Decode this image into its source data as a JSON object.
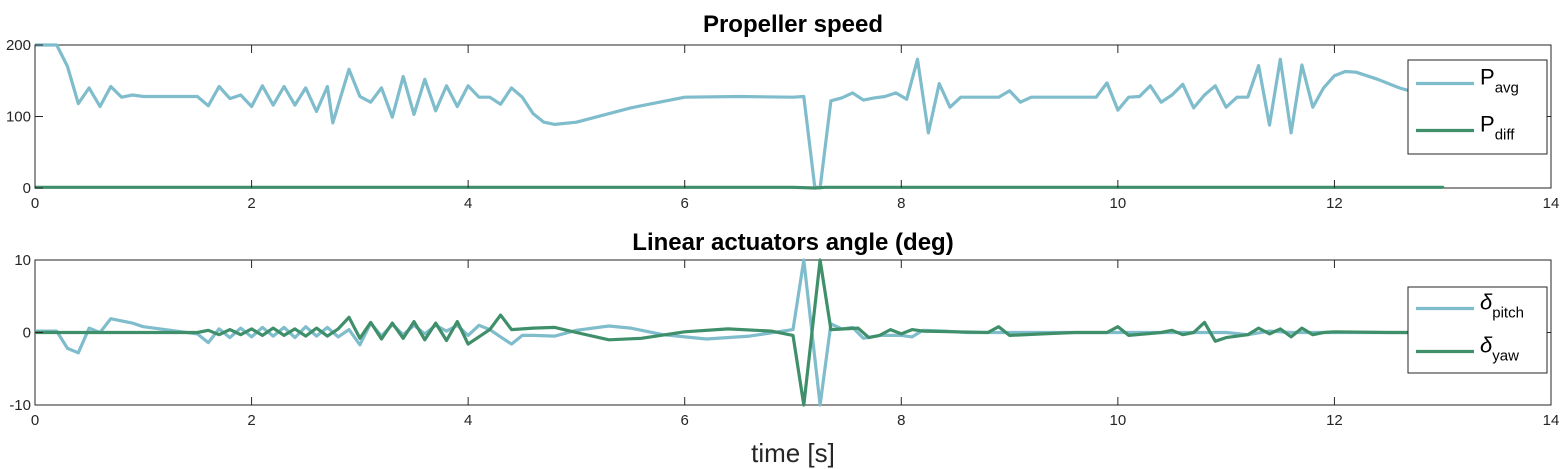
{
  "chart_data": [
    {
      "type": "line",
      "title": "Propeller speed",
      "xlabel": "",
      "ylabel": "",
      "xlim": [
        0,
        14
      ],
      "ylim": [
        0,
        200
      ],
      "xticks": [
        0,
        2,
        4,
        6,
        8,
        10,
        12,
        14
      ],
      "yticks": [
        0,
        100,
        200
      ],
      "legend_position": "top-right",
      "series": [
        {
          "name": "P",
          "subscript": "avg",
          "color": "#7fbccc",
          "points": [
            [
              0,
              200
            ],
            [
              0.2,
              200
            ],
            [
              0.3,
              170
            ],
            [
              0.4,
              118
            ],
            [
              0.5,
              140
            ],
            [
              0.6,
              114
            ],
            [
              0.7,
              142
            ],
            [
              0.8,
              127
            ],
            [
              0.9,
              130
            ],
            [
              1.0,
              128
            ],
            [
              1.5,
              128
            ],
            [
              1.6,
              115
            ],
            [
              1.7,
              142
            ],
            [
              1.8,
              125
            ],
            [
              1.9,
              130
            ],
            [
              2.0,
              114
            ],
            [
              2.1,
              143
            ],
            [
              2.2,
              116
            ],
            [
              2.3,
              142
            ],
            [
              2.4,
              116
            ],
            [
              2.5,
              140
            ],
            [
              2.6,
              107
            ],
            [
              2.7,
              142
            ],
            [
              2.75,
              91
            ],
            [
              2.9,
              166
            ],
            [
              3.0,
              128
            ],
            [
              3.1,
              120
            ],
            [
              3.2,
              140
            ],
            [
              3.3,
              99
            ],
            [
              3.4,
              156
            ],
            [
              3.5,
              103
            ],
            [
              3.6,
              152
            ],
            [
              3.7,
              108
            ],
            [
              3.8,
              143
            ],
            [
              3.9,
              114
            ],
            [
              4.0,
              143
            ],
            [
              4.1,
              127
            ],
            [
              4.2,
              127
            ],
            [
              4.3,
              117
            ],
            [
              4.4,
              140
            ],
            [
              4.5,
              127
            ],
            [
              4.6,
              104
            ],
            [
              4.7,
              92
            ],
            [
              4.8,
              89
            ],
            [
              5.0,
              92
            ],
            [
              5.5,
              112
            ],
            [
              6.0,
              127
            ],
            [
              6.5,
              128
            ],
            [
              7.0,
              127
            ],
            [
              7.1,
              128
            ],
            [
              7.2,
              2
            ],
            [
              7.25,
              0
            ],
            [
              7.35,
              122
            ],
            [
              7.45,
              126
            ],
            [
              7.55,
              133
            ],
            [
              7.65,
              123
            ],
            [
              7.75,
              126
            ],
            [
              7.85,
              128
            ],
            [
              7.95,
              133
            ],
            [
              8.05,
              124
            ],
            [
              8.15,
              180
            ],
            [
              8.25,
              77
            ],
            [
              8.35,
              146
            ],
            [
              8.45,
              113
            ],
            [
              8.55,
              127
            ],
            [
              8.9,
              127
            ],
            [
              9.0,
              136
            ],
            [
              9.1,
              120
            ],
            [
              9.2,
              127
            ],
            [
              9.3,
              127
            ],
            [
              9.8,
              127
            ],
            [
              9.9,
              147
            ],
            [
              10.0,
              109
            ],
            [
              10.1,
              127
            ],
            [
              10.2,
              128
            ],
            [
              10.3,
              143
            ],
            [
              10.4,
              120
            ],
            [
              10.5,
              130
            ],
            [
              10.6,
              145
            ],
            [
              10.7,
              112
            ],
            [
              10.8,
              130
            ],
            [
              10.9,
              143
            ],
            [
              11.0,
              113
            ],
            [
              11.1,
              127
            ],
            [
              11.2,
              127
            ],
            [
              11.3,
              171
            ],
            [
              11.4,
              88
            ],
            [
              11.5,
              180
            ],
            [
              11.6,
              77
            ],
            [
              11.7,
              172
            ],
            [
              11.8,
              113
            ],
            [
              11.9,
              140
            ],
            [
              12.0,
              157
            ],
            [
              12.1,
              163
            ],
            [
              12.2,
              162
            ],
            [
              12.4,
              152
            ],
            [
              12.6,
              140
            ],
            [
              12.8,
              131
            ],
            [
              12.9,
              128
            ]
          ]
        },
        {
          "name": "P",
          "subscript": "diff",
          "color": "#3f8f6a",
          "points": [
            [
              0,
              1
            ],
            [
              7.0,
              1
            ],
            [
              7.2,
              0
            ],
            [
              7.3,
              1
            ],
            [
              13.0,
              1
            ]
          ]
        }
      ]
    },
    {
      "type": "line",
      "title": "Linear actuators angle (deg)",
      "xlabel": "time [s]",
      "ylabel": "",
      "xlim": [
        0,
        14
      ],
      "ylim": [
        -10,
        10
      ],
      "xticks": [
        0,
        2,
        4,
        6,
        8,
        10,
        12,
        14
      ],
      "yticks": [
        -10,
        0,
        10
      ],
      "legend_position": "right",
      "series": [
        {
          "name": "δ",
          "subscript": "pitch",
          "color": "#7fbccc",
          "points": [
            [
              0,
              0.2
            ],
            [
              0.2,
              0.2
            ],
            [
              0.3,
              -2.2
            ],
            [
              0.4,
              -2.8
            ],
            [
              0.5,
              0.6
            ],
            [
              0.6,
              0
            ],
            [
              0.7,
              1.9
            ],
            [
              0.8,
              1.6
            ],
            [
              0.9,
              1.3
            ],
            [
              1.0,
              0.8
            ],
            [
              1.2,
              0.4
            ],
            [
              1.4,
              0
            ],
            [
              1.5,
              -0.2
            ],
            [
              1.6,
              -1.4
            ],
            [
              1.7,
              0.5
            ],
            [
              1.8,
              -0.7
            ],
            [
              1.9,
              0.6
            ],
            [
              2.0,
              -0.6
            ],
            [
              2.1,
              0.7
            ],
            [
              2.2,
              -0.5
            ],
            [
              2.3,
              0.7
            ],
            [
              2.4,
              -0.7
            ],
            [
              2.5,
              0.8
            ],
            [
              2.6,
              -0.5
            ],
            [
              2.7,
              0.7
            ],
            [
              2.8,
              -0.6
            ],
            [
              2.9,
              0.4
            ],
            [
              3.0,
              -1.7
            ],
            [
              3.1,
              1.3
            ],
            [
              3.2,
              -0.5
            ],
            [
              3.3,
              1.1
            ],
            [
              3.4,
              -0.3
            ],
            [
              3.5,
              1.0
            ],
            [
              3.6,
              -0.2
            ],
            [
              3.7,
              1.0
            ],
            [
              3.8,
              0.2
            ],
            [
              3.9,
              1.0
            ],
            [
              4.0,
              -0.4
            ],
            [
              4.1,
              1.0
            ],
            [
              4.2,
              0.4
            ],
            [
              4.3,
              -0.6
            ],
            [
              4.4,
              -1.6
            ],
            [
              4.5,
              -0.4
            ],
            [
              4.6,
              -0.4
            ],
            [
              4.8,
              -0.5
            ],
            [
              5.0,
              0.3
            ],
            [
              5.3,
              0.9
            ],
            [
              5.5,
              0.6
            ],
            [
              5.8,
              -0.3
            ],
            [
              6.2,
              -0.9
            ],
            [
              6.6,
              -0.5
            ],
            [
              7.0,
              0.4
            ],
            [
              7.1,
              10
            ],
            [
              7.25,
              -10
            ],
            [
              7.35,
              1.2
            ],
            [
              7.45,
              0.5
            ],
            [
              7.55,
              0.7
            ],
            [
              7.65,
              -0.8
            ],
            [
              7.8,
              -0.4
            ],
            [
              8.0,
              -0.4
            ],
            [
              8.1,
              -0.6
            ],
            [
              8.2,
              0.3
            ],
            [
              8.4,
              0.2
            ],
            [
              8.6,
              0.0
            ],
            [
              9.0,
              0
            ],
            [
              10.0,
              0
            ],
            [
              10.5,
              0
            ],
            [
              11.0,
              0
            ],
            [
              11.2,
              -0.3
            ],
            [
              11.4,
              0.2
            ],
            [
              11.6,
              0
            ],
            [
              12,
              0
            ],
            [
              13,
              0
            ]
          ]
        },
        {
          "name": "δ",
          "subscript": "yaw",
          "color": "#3f8f6a",
          "points": [
            [
              0,
              0
            ],
            [
              1.5,
              0
            ],
            [
              1.6,
              0.3
            ],
            [
              1.7,
              -0.3
            ],
            [
              1.8,
              0.4
            ],
            [
              1.9,
              -0.3
            ],
            [
              2.0,
              0.5
            ],
            [
              2.1,
              -0.4
            ],
            [
              2.2,
              0.6
            ],
            [
              2.3,
              -0.4
            ],
            [
              2.4,
              0.5
            ],
            [
              2.5,
              -0.5
            ],
            [
              2.6,
              0.6
            ],
            [
              2.7,
              -0.5
            ],
            [
              2.8,
              0.5
            ],
            [
              2.9,
              2.1
            ],
            [
              3.0,
              -0.8
            ],
            [
              3.1,
              1.4
            ],
            [
              3.2,
              -0.9
            ],
            [
              3.3,
              1.3
            ],
            [
              3.4,
              -0.8
            ],
            [
              3.5,
              1.5
            ],
            [
              3.6,
              -1.0
            ],
            [
              3.7,
              1.3
            ],
            [
              3.8,
              -1.1
            ],
            [
              3.9,
              1.5
            ],
            [
              4.0,
              -1.6
            ],
            [
              4.2,
              0.4
            ],
            [
              4.3,
              2.4
            ],
            [
              4.4,
              0.4
            ],
            [
              4.6,
              0.6
            ],
            [
              4.8,
              0.7
            ],
            [
              5.0,
              0
            ],
            [
              5.3,
              -1.0
            ],
            [
              5.6,
              -0.8
            ],
            [
              6.0,
              0.1
            ],
            [
              6.4,
              0.5
            ],
            [
              6.8,
              0.2
            ],
            [
              7.0,
              -0.4
            ],
            [
              7.1,
              -10
            ],
            [
              7.25,
              10
            ],
            [
              7.35,
              0.4
            ],
            [
              7.6,
              0.6
            ],
            [
              7.7,
              -0.7
            ],
            [
              7.8,
              -0.4
            ],
            [
              7.9,
              0.4
            ],
            [
              8.0,
              -0.2
            ],
            [
              8.1,
              0.4
            ],
            [
              8.2,
              0.2
            ],
            [
              8.5,
              0.1
            ],
            [
              8.8,
              0
            ],
            [
              8.9,
              0.8
            ],
            [
              9.0,
              -0.4
            ],
            [
              9.3,
              -0.2
            ],
            [
              9.6,
              0
            ],
            [
              9.9,
              0
            ],
            [
              10.0,
              0.8
            ],
            [
              10.1,
              -0.4
            ],
            [
              10.4,
              0
            ],
            [
              10.5,
              0.3
            ],
            [
              10.6,
              -0.3
            ],
            [
              10.7,
              0
            ],
            [
              10.8,
              1.4
            ],
            [
              10.9,
              -1.2
            ],
            [
              11.0,
              -0.7
            ],
            [
              11.2,
              -0.3
            ],
            [
              11.3,
              0.6
            ],
            [
              11.4,
              -0.2
            ],
            [
              11.5,
              0.5
            ],
            [
              11.6,
              -0.6
            ],
            [
              11.7,
              0.6
            ],
            [
              11.8,
              -0.3
            ],
            [
              11.9,
              0
            ],
            [
              12.0,
              0.1
            ],
            [
              12.5,
              0
            ],
            [
              13,
              0
            ]
          ]
        }
      ]
    }
  ]
}
